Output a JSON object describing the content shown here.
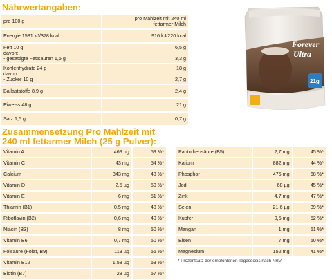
{
  "nutrition": {
    "heading": "Nährwertangaben:",
    "rows": [
      {
        "label": [
          "pro 100 g"
        ],
        "value": [
          "pro Mahlzeit mit 240 ml",
          "fettarmer Milch"
        ]
      },
      {
        "label": [
          "Energie 1581 kJ/378 kcal"
        ],
        "value": [
          "916 kJ/220 kcal"
        ]
      },
      {
        "label": [
          "Fett 10 g",
          "davon:",
          "- gesättigte Fettsäuren 1,5 g"
        ],
        "value": [
          "6,5 g",
          "",
          "3,3 g"
        ]
      },
      {
        "label": [
          "Kohlenhydrate 24 g",
          "davon:",
          "- Zucker 10 g"
        ],
        "value": [
          "18 g",
          "",
          "2,7 g"
        ]
      },
      {
        "label": [
          "Ballaststoffe 8,9 g"
        ],
        "value": [
          "2,4 g"
        ]
      },
      {
        "label": [
          "Eiweiss 48 g"
        ],
        "value": [
          "21 g"
        ]
      },
      {
        "label": [
          "Salz 1,5 g"
        ],
        "value": [
          "0,7 g"
        ]
      }
    ]
  },
  "composition": {
    "heading_line1": "Zusammensetzung Pro Mahlzeit mit",
    "heading_line2": "240 ml fettarmer Milch (25 g Pulver):",
    "left": [
      {
        "name": "Vitamin A",
        "amount": "469 µg",
        "pct": "59 %*"
      },
      {
        "name": "Vitamin C",
        "amount": "43 mg",
        "pct": "54 %*"
      },
      {
        "name": "Calcium",
        "amount": "343 mg",
        "pct": "43 %*"
      },
      {
        "name": "Vitamin D",
        "amount": "2,5 µg",
        "pct": "50 %*"
      },
      {
        "name": "Vitamin E",
        "amount": "6 mg",
        "pct": "51 %*"
      },
      {
        "name": "Thiamin (B1)",
        "amount": "0,5 mg",
        "pct": "48 %*"
      },
      {
        "name": "Riboflavin (B2)",
        "amount": "0,6 mg",
        "pct": "40 %*"
      },
      {
        "name": "Niacin (B3)",
        "amount": "8 mg",
        "pct": "50 %*"
      },
      {
        "name": "Vitamin B6",
        "amount": "0,7 mg",
        "pct": "50 %*"
      },
      {
        "name": "Folsäure (Folat, B9)",
        "amount": "113 µg",
        "pct": "56 %*"
      },
      {
        "name": "Vitamin B12",
        "amount": "1,58 µg",
        "pct": "63 %*"
      },
      {
        "name": "Biotin (B7)",
        "amount": "28 µg",
        "pct": "57 %*"
      }
    ],
    "right": [
      {
        "name": "Pantothensäure (B5)",
        "amount": "2,7 mg",
        "pct": "45 %*"
      },
      {
        "name": "Kalium",
        "amount": "882 mg",
        "pct": "44 %*"
      },
      {
        "name": "Phosphor",
        "amount": "475 mg",
        "pct": "68 %*"
      },
      {
        "name": "Jod",
        "amount": "68 µg",
        "pct": "45 %*"
      },
      {
        "name": "Zink",
        "amount": "4,7 mg",
        "pct": "47 %*"
      },
      {
        "name": "Selen",
        "amount": "21,6 µg",
        "pct": "39 %*"
      },
      {
        "name": "Kupfer",
        "amount": "0,5 mg",
        "pct": "52 %*"
      },
      {
        "name": "Mangan",
        "amount": "1 mg",
        "pct": "51 %*"
      },
      {
        "name": "Eisen",
        "amount": "7 mg",
        "pct": "50 %*"
      },
      {
        "name": "Magnesium",
        "amount": "152 mg",
        "pct": "41 %*"
      }
    ],
    "footnote": "* Prozentsatz der empfohlenen Tagesdosis nach NRV"
  },
  "package": {
    "brand": "Forever",
    "product": "Ultra",
    "badge": "21g",
    "colors": {
      "pouch": "#f1ede8",
      "chocolate": "#6b4a36",
      "accent": "#f2a900",
      "blue": "#2e7dbf"
    }
  }
}
